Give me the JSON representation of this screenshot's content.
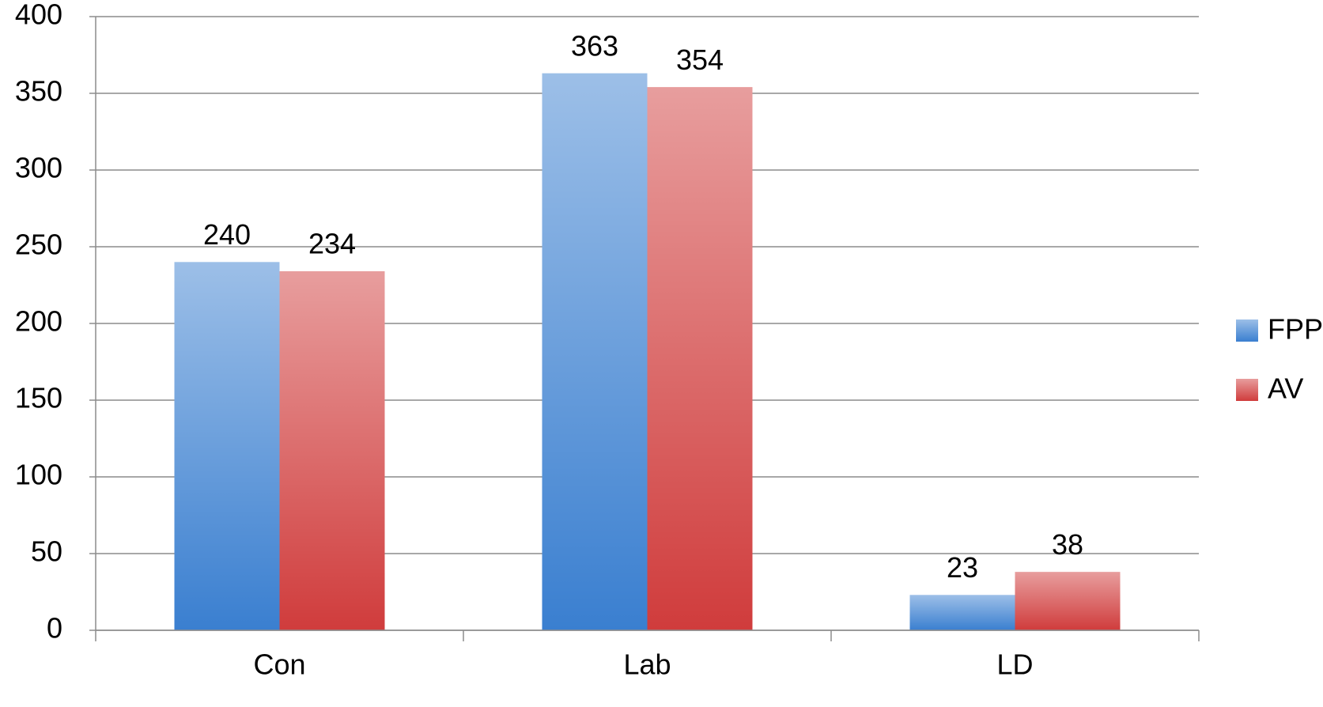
{
  "chart_data": {
    "type": "bar",
    "categories": [
      "Con",
      "Lab",
      "LD"
    ],
    "series": [
      {
        "name": "FPP",
        "color": "#3a7fd0",
        "values": [
          240,
          363,
          23
        ]
      },
      {
        "name": "AV",
        "color": "#d03c3c",
        "values": [
          234,
          354,
          38
        ]
      }
    ],
    "ylim": [
      0,
      400
    ],
    "yticks": [
      0,
      50,
      100,
      150,
      200,
      250,
      300,
      350,
      400
    ],
    "grid": true,
    "legend": "right"
  }
}
